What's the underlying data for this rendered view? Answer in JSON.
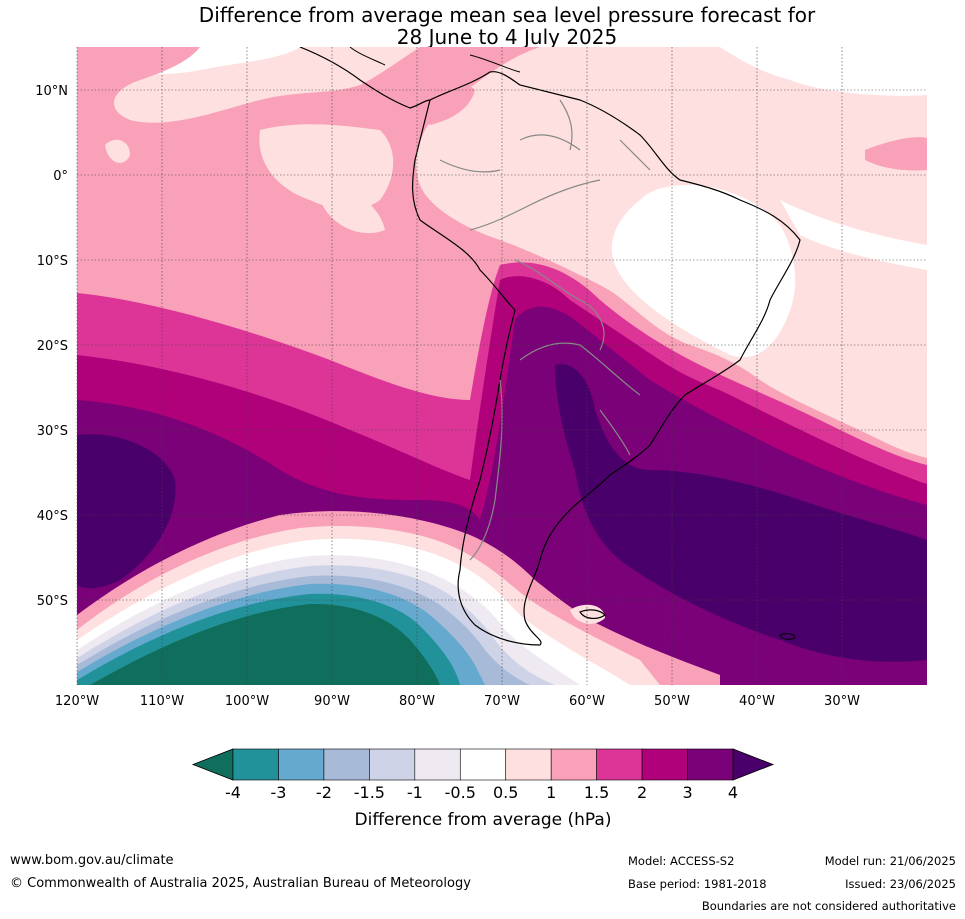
{
  "title": {
    "line1": "Difference from average mean sea level pressure forecast for",
    "line2": "28 June to 4 July 2025"
  },
  "map": {
    "lat_labels": [
      "10°N",
      "0°",
      "10°S",
      "20°S",
      "30°S",
      "40°S",
      "50°S"
    ],
    "lon_labels": [
      "120°W",
      "110°W",
      "100°W",
      "90°W",
      "80°W",
      "70°W",
      "60°W",
      "50°W",
      "40°W",
      "30°W"
    ]
  },
  "colorbar": {
    "title": "Difference from average (hPa)",
    "tick_labels": [
      "-4",
      "-3",
      "-2",
      "-1.5",
      "-1",
      "-0.5",
      "0.5",
      "1",
      "1.5",
      "2",
      "3",
      "4"
    ],
    "colors": [
      "#0f6e5c",
      "#22929a",
      "#65a9cf",
      "#a7bad8",
      "#cfd3e7",
      "#efe9f1",
      "#ffffff",
      "#fde0df",
      "#f9a1b8",
      "#dd3597",
      "#b0007a",
      "#7a0177",
      "#49006a"
    ]
  },
  "footer": {
    "website": "www.bom.gov.au/climate",
    "copyright": "© Commonwealth of Australia 2025, Australian Bureau of Meteorology",
    "model": "Model: ACCESS-S2",
    "base_period": "Base period: 1981-2018",
    "model_run": "Model run: 21/06/2025",
    "issued": "Issued: 23/06/2025",
    "disclaimer": "Boundaries are not considered authoritative"
  }
}
